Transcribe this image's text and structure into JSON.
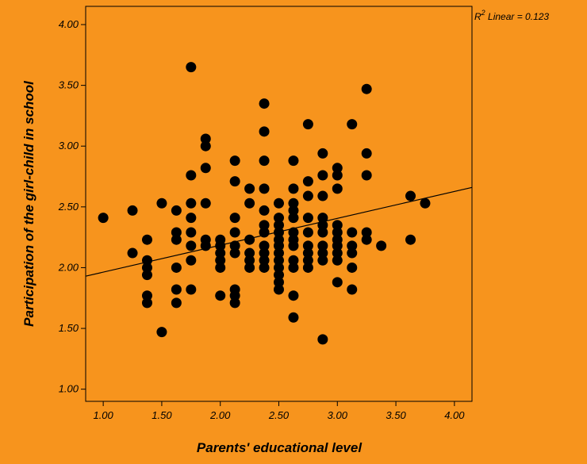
{
  "chart_data": {
    "type": "scatter",
    "title": "",
    "xlabel": "Parents' educational level",
    "ylabel": "Participation of the girl-child in school",
    "xlim": [
      0.85,
      4.15
    ],
    "ylim": [
      0.9,
      4.15
    ],
    "x_ticks": [
      "1.00",
      "1.50",
      "2.00",
      "2.50",
      "3.00",
      "3.50",
      "4.00"
    ],
    "y_ticks": [
      "1.00",
      "1.50",
      "2.00",
      "2.50",
      "3.00",
      "3.50",
      "4.00"
    ],
    "fit_line": {
      "label_prefix": "R",
      "label_sup": "2",
      "label_rest": " Linear = 0.123",
      "x_start": 0.85,
      "y_start": 1.93,
      "x_end": 4.15,
      "y_end": 2.66
    },
    "background_color": "#f7941d",
    "point_color": "#000000",
    "points": [
      [
        1.0,
        2.41
      ],
      [
        1.25,
        2.47
      ],
      [
        1.25,
        2.12
      ],
      [
        1.375,
        2.23
      ],
      [
        1.375,
        2.06
      ],
      [
        1.375,
        2.0
      ],
      [
        1.375,
        1.94
      ],
      [
        1.375,
        1.77
      ],
      [
        1.375,
        1.71
      ],
      [
        1.5,
        2.53
      ],
      [
        1.5,
        1.47
      ],
      [
        1.625,
        2.47
      ],
      [
        1.625,
        2.29
      ],
      [
        1.625,
        2.23
      ],
      [
        1.625,
        2.0
      ],
      [
        1.625,
        1.82
      ],
      [
        1.625,
        1.71
      ],
      [
        1.75,
        3.65
      ],
      [
        1.75,
        2.76
      ],
      [
        1.75,
        2.53
      ],
      [
        1.75,
        2.41
      ],
      [
        1.75,
        2.29
      ],
      [
        1.75,
        2.18
      ],
      [
        1.75,
        2.06
      ],
      [
        1.75,
        1.82
      ],
      [
        1.875,
        3.06
      ],
      [
        1.875,
        3.0
      ],
      [
        1.875,
        2.82
      ],
      [
        1.875,
        2.53
      ],
      [
        1.875,
        2.23
      ],
      [
        1.875,
        2.18
      ],
      [
        2.0,
        2.23
      ],
      [
        2.0,
        2.18
      ],
      [
        2.0,
        2.12
      ],
      [
        2.0,
        2.06
      ],
      [
        2.0,
        2.0
      ],
      [
        2.0,
        1.77
      ],
      [
        2.125,
        2.88
      ],
      [
        2.125,
        2.71
      ],
      [
        2.125,
        2.41
      ],
      [
        2.125,
        2.29
      ],
      [
        2.125,
        2.18
      ],
      [
        2.125,
        2.12
      ],
      [
        2.125,
        1.82
      ],
      [
        2.125,
        1.77
      ],
      [
        2.125,
        1.71
      ],
      [
        2.25,
        2.65
      ],
      [
        2.25,
        2.53
      ],
      [
        2.25,
        2.23
      ],
      [
        2.25,
        2.12
      ],
      [
        2.25,
        2.06
      ],
      [
        2.25,
        2.0
      ],
      [
        2.375,
        3.35
      ],
      [
        2.375,
        3.12
      ],
      [
        2.375,
        2.88
      ],
      [
        2.375,
        2.65
      ],
      [
        2.375,
        2.47
      ],
      [
        2.375,
        2.35
      ],
      [
        2.375,
        2.29
      ],
      [
        2.375,
        2.18
      ],
      [
        2.375,
        2.12
      ],
      [
        2.375,
        2.06
      ],
      [
        2.375,
        2.0
      ],
      [
        2.5,
        2.53
      ],
      [
        2.5,
        2.41
      ],
      [
        2.5,
        2.35
      ],
      [
        2.5,
        2.29
      ],
      [
        2.5,
        2.23
      ],
      [
        2.5,
        2.18
      ],
      [
        2.5,
        2.12
      ],
      [
        2.5,
        2.06
      ],
      [
        2.5,
        2.0
      ],
      [
        2.5,
        1.94
      ],
      [
        2.5,
        1.88
      ],
      [
        2.5,
        1.82
      ],
      [
        2.625,
        2.88
      ],
      [
        2.625,
        2.65
      ],
      [
        2.625,
        2.53
      ],
      [
        2.625,
        2.47
      ],
      [
        2.625,
        2.41
      ],
      [
        2.625,
        2.29
      ],
      [
        2.625,
        2.23
      ],
      [
        2.625,
        2.18
      ],
      [
        2.625,
        2.06
      ],
      [
        2.625,
        2.0
      ],
      [
        2.625,
        1.77
      ],
      [
        2.625,
        1.59
      ],
      [
        2.75,
        3.18
      ],
      [
        2.75,
        2.71
      ],
      [
        2.75,
        2.59
      ],
      [
        2.75,
        2.41
      ],
      [
        2.75,
        2.29
      ],
      [
        2.75,
        2.18
      ],
      [
        2.75,
        2.12
      ],
      [
        2.75,
        2.06
      ],
      [
        2.75,
        2.0
      ],
      [
        2.875,
        2.94
      ],
      [
        2.875,
        2.76
      ],
      [
        2.875,
        2.59
      ],
      [
        2.875,
        2.41
      ],
      [
        2.875,
        2.35
      ],
      [
        2.875,
        2.29
      ],
      [
        2.875,
        2.18
      ],
      [
        2.875,
        2.12
      ],
      [
        2.875,
        2.06
      ],
      [
        2.875,
        1.41
      ],
      [
        3.0,
        2.82
      ],
      [
        3.0,
        2.76
      ],
      [
        3.0,
        2.65
      ],
      [
        3.0,
        2.35
      ],
      [
        3.0,
        2.29
      ],
      [
        3.0,
        2.23
      ],
      [
        3.0,
        2.18
      ],
      [
        3.0,
        2.12
      ],
      [
        3.0,
        2.06
      ],
      [
        3.0,
        1.88
      ],
      [
        3.125,
        3.18
      ],
      [
        3.125,
        2.29
      ],
      [
        3.125,
        2.18
      ],
      [
        3.125,
        2.12
      ],
      [
        3.125,
        2.0
      ],
      [
        3.125,
        1.82
      ],
      [
        3.25,
        3.47
      ],
      [
        3.25,
        2.94
      ],
      [
        3.25,
        2.76
      ],
      [
        3.25,
        2.29
      ],
      [
        3.25,
        2.23
      ],
      [
        3.375,
        2.18
      ],
      [
        3.625,
        2.59
      ],
      [
        3.625,
        2.23
      ],
      [
        3.75,
        2.53
      ]
    ]
  }
}
